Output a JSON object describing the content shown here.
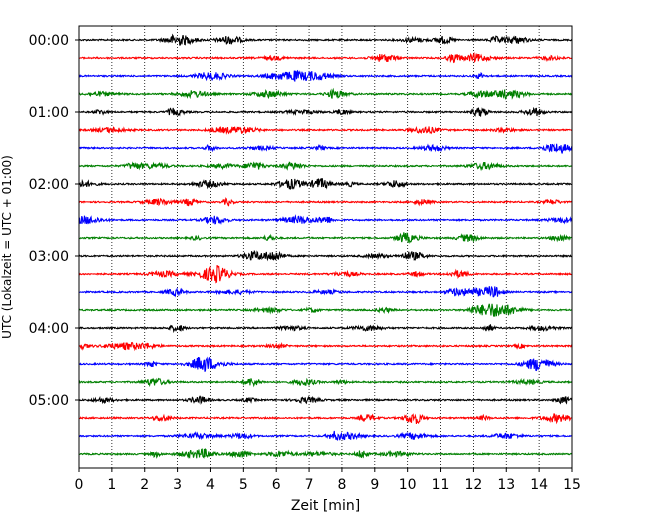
{
  "chart_data": {
    "type": "line",
    "title": "",
    "xlabel": "Zeit  [min]",
    "ylabel": "UTC (Lokalzeit = UTC + 01:00)",
    "xlim": [
      0,
      15
    ],
    "x_ticks": [
      0,
      1,
      2,
      3,
      4,
      5,
      6,
      7,
      8,
      9,
      10,
      11,
      12,
      13,
      14,
      15
    ],
    "x_tick_labels": [
      "0",
      "1",
      "2",
      "3",
      "4",
      "5",
      "6",
      "7",
      "8",
      "9",
      "10",
      "11",
      "12",
      "13",
      "14",
      "15"
    ],
    "y_tick_labels": [
      "00:00",
      "01:00",
      "02:00",
      "03:00",
      "04:00",
      "05:00"
    ],
    "trace_interval_minutes": 15,
    "trace_count": 24,
    "trace_colors": [
      "#000000",
      "#ff0000",
      "#0000ff",
      "#008000"
    ],
    "grid": "vertical dotted at each minute",
    "legend": "none",
    "series": [
      {
        "start_time": "00:00",
        "color": "#000000"
      },
      {
        "start_time": "00:15",
        "color": "#ff0000"
      },
      {
        "start_time": "00:30",
        "color": "#0000ff"
      },
      {
        "start_time": "00:45",
        "color": "#008000"
      },
      {
        "start_time": "01:00",
        "color": "#000000"
      },
      {
        "start_time": "01:15",
        "color": "#ff0000"
      },
      {
        "start_time": "01:30",
        "color": "#0000ff"
      },
      {
        "start_time": "01:45",
        "color": "#008000"
      },
      {
        "start_time": "02:00",
        "color": "#000000"
      },
      {
        "start_time": "02:15",
        "color": "#ff0000"
      },
      {
        "start_time": "02:30",
        "color": "#0000ff"
      },
      {
        "start_time": "02:45",
        "color": "#008000"
      },
      {
        "start_time": "03:00",
        "color": "#000000"
      },
      {
        "start_time": "03:15",
        "color": "#ff0000"
      },
      {
        "start_time": "03:30",
        "color": "#0000ff"
      },
      {
        "start_time": "03:45",
        "color": "#008000"
      },
      {
        "start_time": "04:00",
        "color": "#000000"
      },
      {
        "start_time": "04:15",
        "color": "#ff0000"
      },
      {
        "start_time": "04:30",
        "color": "#0000ff"
      },
      {
        "start_time": "04:45",
        "color": "#008000"
      },
      {
        "start_time": "05:00",
        "color": "#000000"
      },
      {
        "start_time": "05:15",
        "color": "#ff0000"
      },
      {
        "start_time": "05:30",
        "color": "#0000ff"
      },
      {
        "start_time": "05:45",
        "color": "#008000"
      }
    ]
  }
}
